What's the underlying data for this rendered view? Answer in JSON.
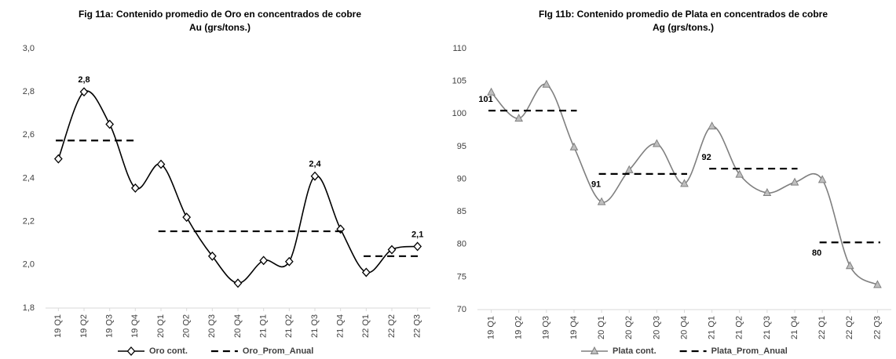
{
  "chart_data": [
    {
      "type": "line",
      "title": "Fig 11a:  Contenido promedio de Oro en concentrados de cobre",
      "subtitle": "Au (grs/tons.)",
      "categories": [
        "19 Q1",
        "19 Q2",
        "19 Q3",
        "19 Q4",
        "20 Q1",
        "20 Q2",
        "20 Q3",
        "20 Q4",
        "21 Q1",
        "21 Q2",
        "21 Q3",
        "21 Q4",
        "22 Q1",
        "22 Q2",
        "22 Q3"
      ],
      "series": [
        {
          "name": "Oro cont.",
          "color": "#000000",
          "marker": "diamond",
          "line_style": "solid",
          "values": [
            2.49,
            2.8,
            2.65,
            2.355,
            2.465,
            2.22,
            2.04,
            1.915,
            2.02,
            2.015,
            2.41,
            2.165,
            1.965,
            2.07,
            2.085
          ],
          "value_labels": [
            null,
            "2,8",
            null,
            null,
            null,
            null,
            null,
            null,
            null,
            null,
            "2,4",
            null,
            null,
            null,
            "2,1"
          ]
        },
        {
          "name": "Oro_Prom_Anual",
          "color": "#000000",
          "marker": "none",
          "line_style": "dashed",
          "values": [
            2.575,
            2.575,
            2.575,
            2.575,
            2.155,
            2.155,
            2.155,
            2.155,
            2.155,
            2.155,
            2.155,
            2.155,
            2.04,
            2.04,
            2.04
          ]
        }
      ],
      "ylim": [
        1.8,
        3.0
      ],
      "yticks": [
        {
          "value": 1.8,
          "label": "1,8"
        },
        {
          "value": 2.0,
          "label": "2,0"
        },
        {
          "value": 2.2,
          "label": "2,2"
        },
        {
          "value": 2.4,
          "label": "2,4"
        },
        {
          "value": 2.6,
          "label": "2,6"
        },
        {
          "value": 2.8,
          "label": "2,8"
        },
        {
          "value": 3.0,
          "label": "3,0"
        }
      ],
      "grid": false,
      "legend": "bottom"
    },
    {
      "type": "line",
      "title": "FIg 11b: Contenido promedio de Plata en concentrados de cobre",
      "subtitle": "Ag (grs/tons.)",
      "categories": [
        "19 Q1",
        "19 Q2",
        "19 Q3",
        "19 Q4",
        "20 Q1",
        "20 Q2",
        "20 Q3",
        "20 Q4",
        "21 Q1",
        "21 Q2",
        "21 Q3",
        "21 Q4",
        "22 Q1",
        "22 Q2",
        "22 Q3"
      ],
      "series": [
        {
          "name": "Plata cont.",
          "color": "#7f7f7f",
          "marker": "triangle",
          "line_style": "solid",
          "values": [
            103.3,
            99.3,
            104.5,
            94.9,
            86.5,
            91.4,
            95.4,
            89.3,
            98.1,
            90.7,
            87.9,
            89.5,
            89.9,
            76.7,
            73.8
          ]
        },
        {
          "name": "Plata_Prom_Anual",
          "color": "#000000",
          "marker": "none",
          "line_style": "dashed",
          "values": [
            100.5,
            100.5,
            100.5,
            100.5,
            90.8,
            90.8,
            90.8,
            90.8,
            91.6,
            91.6,
            91.6,
            91.6,
            80.3,
            80.3,
            80.3
          ],
          "value_labels": [
            "101",
            null,
            null,
            null,
            "91",
            null,
            null,
            null,
            "92",
            null,
            null,
            null,
            "80",
            null,
            null
          ]
        }
      ],
      "ylim": [
        70,
        110
      ],
      "yticks": [
        70,
        75,
        80,
        85,
        90,
        95,
        100,
        105,
        110
      ],
      "grid": false,
      "legend": "bottom"
    }
  ]
}
